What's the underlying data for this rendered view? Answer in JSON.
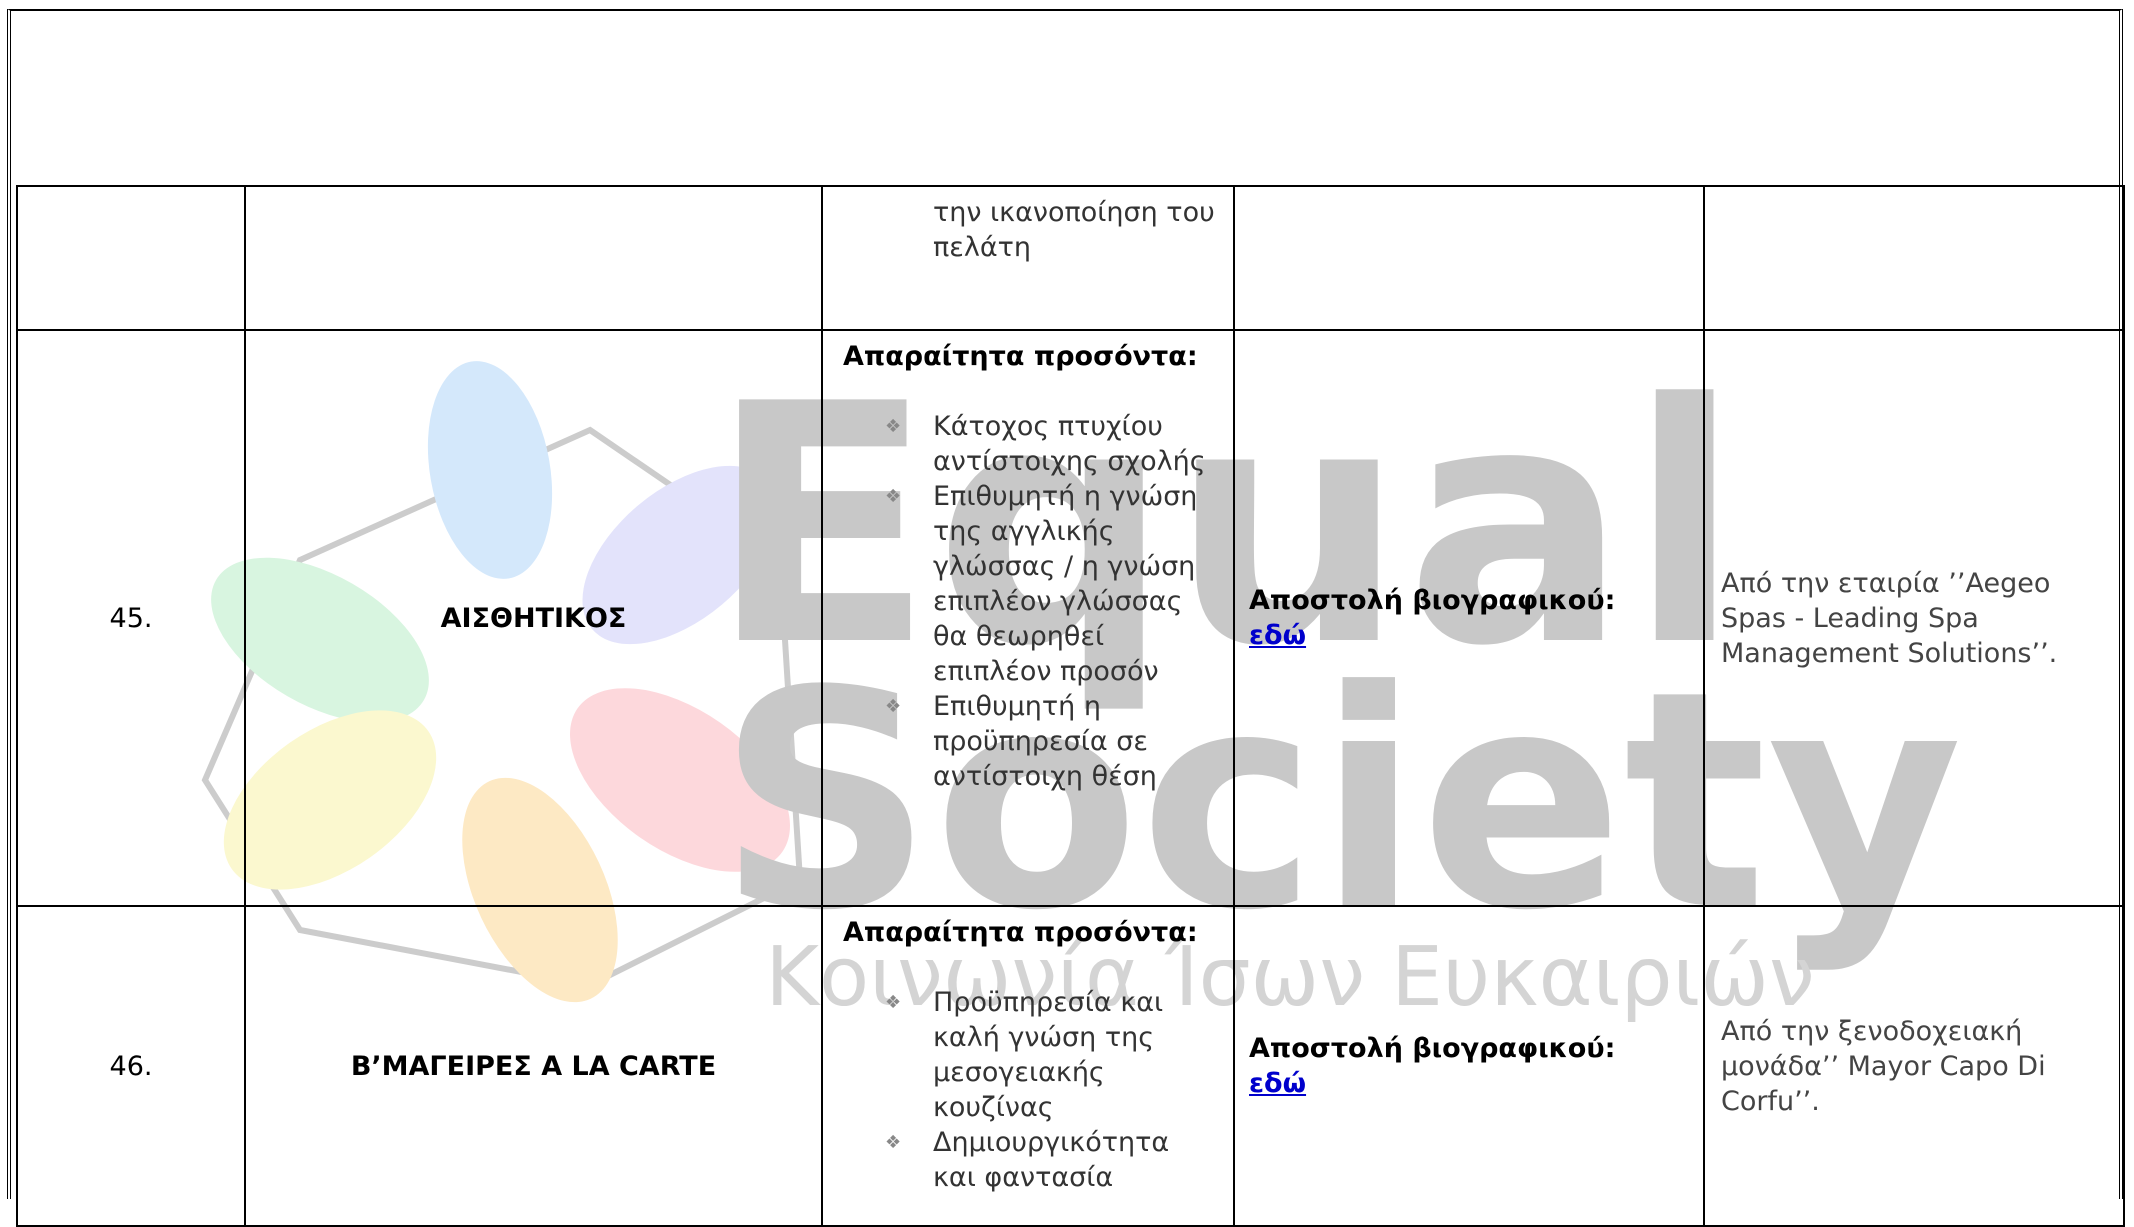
{
  "watermark": {
    "title_line1": "Equal",
    "title_line2": "Society",
    "subtitle": "Κοινωνία Ίσων Ευκαιριών"
  },
  "table": {
    "rows": [
      {
        "requirements_continued": "την ικανοποίηση του πελάτη"
      },
      {
        "number": "45.",
        "position": "ΑΙΣΘΗΤΙΚΟΣ",
        "requirements_heading": "Απαραίτητα προσόντα:",
        "requirements": [
          "Κάτοχος πτυχίου αντίστοιχης σχολής",
          "Επιθυμητή η γνώση της αγγλικής γλώσσας / η γνώση επιπλέον γλώσσας θα θεωρηθεί επιπλέον προσόν",
          "Επιθυμητή η προϋπηρεσία σε αντίστοιχη θέση"
        ],
        "apply_label": "Αποστολή βιογραφικού:",
        "apply_link": "εδώ",
        "company": "Από την εταιρία ’’Aegeo Spas - Leading Spa Management Solutions’’."
      },
      {
        "number": "46.",
        "position": "Β’ΜΑΓΕΙΡΕΣ A LA CARTE",
        "requirements_heading": "Απαραίτητα προσόντα:",
        "requirements": [
          "Προϋπηρεσία και καλή γνώση της μεσογειακής κουζίνας",
          "Δημιουργικότητα και φαντασία"
        ],
        "apply_label": "Αποστολή βιογραφικού:",
        "apply_link": "εδώ",
        "company": "Από την ξενοδοχειακή μονάδα’’ Mayor Capo Di Corfu’’."
      }
    ]
  }
}
